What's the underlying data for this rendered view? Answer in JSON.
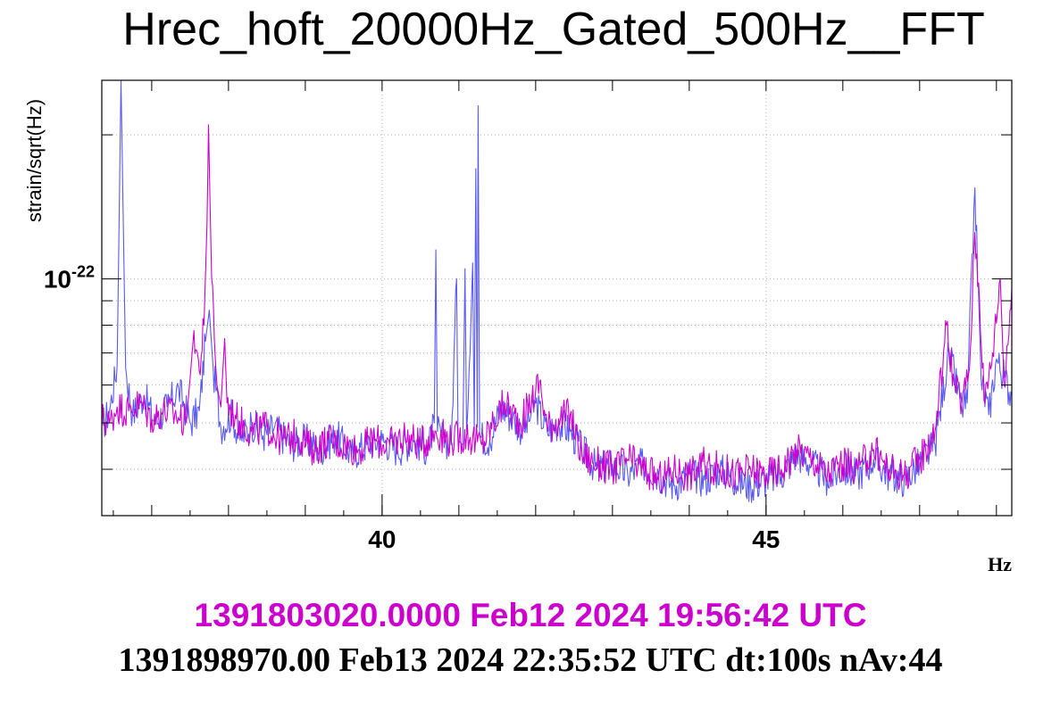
{
  "chart_data": {
    "type": "line",
    "title": "Hrec_hoft_20000Hz_Gated_500Hz__FFT",
    "xlabel": "Hz",
    "ylabel": "strain/sqrt(Hz)",
    "x_scale": "linear",
    "y_scale": "log",
    "xlim": [
      36.35,
      48.2
    ],
    "ylim": [
      3.2e-23,
      2.6e-22
    ],
    "x_ticks": [
      {
        "value": 40,
        "label": "40"
      },
      {
        "value": 45,
        "label": "45"
      }
    ],
    "y_tick_label": {
      "base": "10",
      "exponent": "-22"
    },
    "grid": true,
    "legend": "none",
    "series": [
      {
        "color": "#5a5af0",
        "points": [
          [
            36.35,
            4.9e-23
          ],
          [
            36.45,
            5.3e-23
          ],
          [
            36.55,
            6.6e-23
          ],
          [
            36.58,
            1.5e-22
          ],
          [
            36.6,
            2.6e-22
          ],
          [
            36.63,
            1.3e-22
          ],
          [
            36.66,
            6.5e-23
          ],
          [
            36.75,
            5.2e-23
          ],
          [
            36.9,
            5.7e-23
          ],
          [
            37.05,
            5e-23
          ],
          [
            37.2,
            5.4e-23
          ],
          [
            37.35,
            5.9e-23
          ],
          [
            37.5,
            5e-23
          ],
          [
            37.62,
            5.3e-23
          ],
          [
            37.7,
            7.4e-23
          ],
          [
            37.75,
            8.6e-23
          ],
          [
            37.8,
            6.5e-23
          ],
          [
            37.9,
            4.9e-23
          ],
          [
            38.05,
            5.2e-23
          ],
          [
            38.15,
            4.6e-23
          ],
          [
            38.3,
            5e-23
          ],
          [
            38.45,
            4.7e-23
          ],
          [
            38.6,
            4.9e-23
          ],
          [
            38.8,
            4.5e-23
          ],
          [
            39.0,
            4.6e-23
          ],
          [
            39.2,
            4.4e-23
          ],
          [
            39.4,
            4.7e-23
          ],
          [
            39.6,
            4.3e-23
          ],
          [
            39.8,
            4.5e-23
          ],
          [
            40.0,
            4.6e-23
          ],
          [
            40.2,
            4.4e-23
          ],
          [
            40.4,
            4.6e-23
          ],
          [
            40.6,
            4.4e-23
          ],
          [
            40.68,
            5e-23
          ],
          [
            40.7,
            1.15e-22
          ],
          [
            40.72,
            4.8e-23
          ],
          [
            40.82,
            4.6e-23
          ],
          [
            40.9,
            4.5e-23
          ],
          [
            40.97,
            1e-22
          ],
          [
            40.99,
            4.6e-23
          ],
          [
            41.05,
            4.5e-23
          ],
          [
            41.08,
            1.05e-22
          ],
          [
            41.1,
            4.8e-23
          ],
          [
            41.18,
            1.08e-22
          ],
          [
            41.2,
            4.8e-23
          ],
          [
            41.22,
            1.7e-22
          ],
          [
            41.24,
            4.9e-23
          ],
          [
            41.25,
            2.3e-22
          ],
          [
            41.27,
            4.7e-23
          ],
          [
            41.4,
            4.6e-23
          ],
          [
            41.55,
            5.4e-23
          ],
          [
            41.7,
            5.1e-23
          ],
          [
            41.85,
            4.8e-23
          ],
          [
            42.0,
            5.5e-23
          ],
          [
            42.15,
            4.8e-23
          ],
          [
            42.3,
            5e-23
          ],
          [
            42.45,
            4.8e-23
          ],
          [
            42.6,
            4.4e-23
          ],
          [
            42.8,
            4e-23
          ],
          [
            43.0,
            4.1e-23
          ],
          [
            43.2,
            3.9e-23
          ],
          [
            43.4,
            4.1e-23
          ],
          [
            43.6,
            3.9e-23
          ],
          [
            43.8,
            3.7e-23
          ],
          [
            44.0,
            3.9e-23
          ],
          [
            44.2,
            3.8e-23
          ],
          [
            44.4,
            4e-23
          ],
          [
            44.6,
            3.8e-23
          ],
          [
            44.8,
            3.7e-23
          ],
          [
            45.0,
            3.8e-23
          ],
          [
            45.2,
            3.9e-23
          ],
          [
            45.4,
            4.3e-23
          ],
          [
            45.6,
            4.1e-23
          ],
          [
            45.8,
            3.8e-23
          ],
          [
            46.0,
            4e-23
          ],
          [
            46.2,
            3.9e-23
          ],
          [
            46.4,
            4.2e-23
          ],
          [
            46.6,
            3.9e-23
          ],
          [
            46.8,
            3.8e-23
          ],
          [
            47.0,
            4.1e-23
          ],
          [
            47.2,
            4.5e-23
          ],
          [
            47.38,
            7e-23
          ],
          [
            47.55,
            5.4e-23
          ],
          [
            47.62,
            5.5e-23
          ],
          [
            47.72,
            1.55e-22
          ],
          [
            47.8,
            6.2e-23
          ],
          [
            47.9,
            5.2e-23
          ],
          [
            48.0,
            6.8e-23
          ],
          [
            48.2,
            5.7e-23
          ]
        ]
      },
      {
        "color": "#cc00cc",
        "points": [
          [
            36.35,
            5.1e-23
          ],
          [
            36.45,
            5e-23
          ],
          [
            36.55,
            5.4e-23
          ],
          [
            36.7,
            5.3e-23
          ],
          [
            36.85,
            5.5e-23
          ],
          [
            37.0,
            5.1e-23
          ],
          [
            37.15,
            5.3e-23
          ],
          [
            37.3,
            5.2e-23
          ],
          [
            37.45,
            5e-23
          ],
          [
            37.5,
            6.2e-23
          ],
          [
            37.55,
            7.8e-23
          ],
          [
            37.62,
            6.4e-23
          ],
          [
            37.68,
            8e-23
          ],
          [
            37.72,
            1.3e-22
          ],
          [
            37.74,
            2.1e-22
          ],
          [
            37.78,
            1e-22
          ],
          [
            37.85,
            6e-23
          ],
          [
            37.9,
            5.4e-23
          ],
          [
            37.95,
            7.5e-23
          ],
          [
            37.98,
            5.5e-23
          ],
          [
            38.1,
            5.1e-23
          ],
          [
            38.3,
            4.8e-23
          ],
          [
            38.5,
            4.9e-23
          ],
          [
            38.7,
            4.6e-23
          ],
          [
            38.9,
            4.7e-23
          ],
          [
            39.1,
            4.4e-23
          ],
          [
            39.3,
            4.6e-23
          ],
          [
            39.5,
            4.5e-23
          ],
          [
            39.7,
            4.4e-23
          ],
          [
            39.9,
            4.6e-23
          ],
          [
            40.1,
            4.5e-23
          ],
          [
            40.3,
            4.7e-23
          ],
          [
            40.5,
            4.5e-23
          ],
          [
            40.7,
            4.8e-23
          ],
          [
            40.9,
            4.6e-23
          ],
          [
            41.1,
            4.7e-23
          ],
          [
            41.3,
            4.5e-23
          ],
          [
            41.45,
            5e-23
          ],
          [
            41.6,
            5.5e-23
          ],
          [
            41.8,
            5e-23
          ],
          [
            41.95,
            5.6e-23
          ],
          [
            42.05,
            6.1e-23
          ],
          [
            42.15,
            4.9e-23
          ],
          [
            42.3,
            5.1e-23
          ],
          [
            42.45,
            5.2e-23
          ],
          [
            42.6,
            4.3e-23
          ],
          [
            42.8,
            4.1e-23
          ],
          [
            43.0,
            4e-23
          ],
          [
            43.2,
            4.2e-23
          ],
          [
            43.4,
            4e-23
          ],
          [
            43.6,
            3.8e-23
          ],
          [
            43.8,
            4e-23
          ],
          [
            44.0,
            3.9e-23
          ],
          [
            44.2,
            4.1e-23
          ],
          [
            44.4,
            4e-23
          ],
          [
            44.6,
            3.9e-23
          ],
          [
            44.8,
            4e-23
          ],
          [
            45.0,
            3.9e-23
          ],
          [
            45.2,
            4e-23
          ],
          [
            45.4,
            4.4e-23
          ],
          [
            45.6,
            4.2e-23
          ],
          [
            45.8,
            3.9e-23
          ],
          [
            46.0,
            4.1e-23
          ],
          [
            46.2,
            4e-23
          ],
          [
            46.4,
            4.4e-23
          ],
          [
            46.6,
            4e-23
          ],
          [
            46.8,
            3.9e-23
          ],
          [
            47.0,
            4.2e-23
          ],
          [
            47.2,
            4.8e-23
          ],
          [
            47.35,
            8e-23
          ],
          [
            47.45,
            6e-23
          ],
          [
            47.55,
            5.5e-23
          ],
          [
            47.65,
            6.5e-23
          ],
          [
            47.72,
            1.25e-22
          ],
          [
            47.78,
            9e-23
          ],
          [
            47.85,
            5.5e-23
          ],
          [
            47.95,
            7e-23
          ],
          [
            48.05,
            1e-22
          ],
          [
            48.1,
            6e-23
          ],
          [
            48.2,
            9.5e-23
          ]
        ]
      }
    ]
  },
  "footer": {
    "reference_trace": "1391803020.0000 Feb12 2024 19:56:42 UTC",
    "reference_color": "#cc00cc",
    "current_trace": "1391898970.00 Feb13 2024 22:35:52 UTC dt:100s nAv:44"
  }
}
